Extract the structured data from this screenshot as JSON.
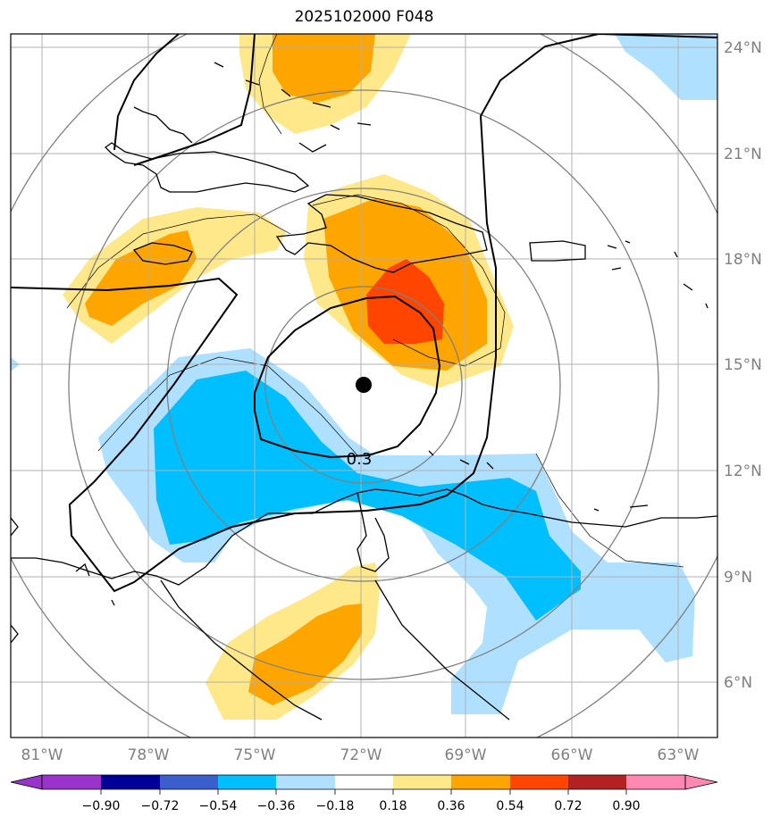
{
  "title": "2025102000 F048",
  "contour_label": "0.3",
  "lon_labels": [
    "81°W",
    "78°W",
    "75°W",
    "72°W",
    "69°W",
    "66°W",
    "63°W"
  ],
  "lat_labels": [
    "24°N",
    "21°N",
    "18°N",
    "15°N",
    "12°N",
    "9°N",
    "6°N"
  ],
  "colorbar": {
    "ticks": [
      "−0.90",
      "−0.72",
      "−0.54",
      "−0.36",
      "−0.18",
      "0.18",
      "0.36",
      "0.54",
      "0.72",
      "0.90"
    ],
    "colors": [
      "#9933cc",
      "#000099",
      "#3a5fcd",
      "#00bfff",
      "#b0e0ff",
      "#ffffff",
      "#ffe88a",
      "#ffa500",
      "#ff4500",
      "#b22222",
      "#ff88b3"
    ]
  },
  "colors": {
    "light_blue": "#b0e0ff",
    "blue": "#00bfff",
    "light_yellow": "#ffe88a",
    "orange": "#ffa500",
    "red_orange": "#ff4500",
    "grid": "#b0b0b0",
    "range_rings": "#808080",
    "label_gray": "#808080"
  },
  "center_marker": {
    "lon": -71.9,
    "lat": 14.4
  }
}
